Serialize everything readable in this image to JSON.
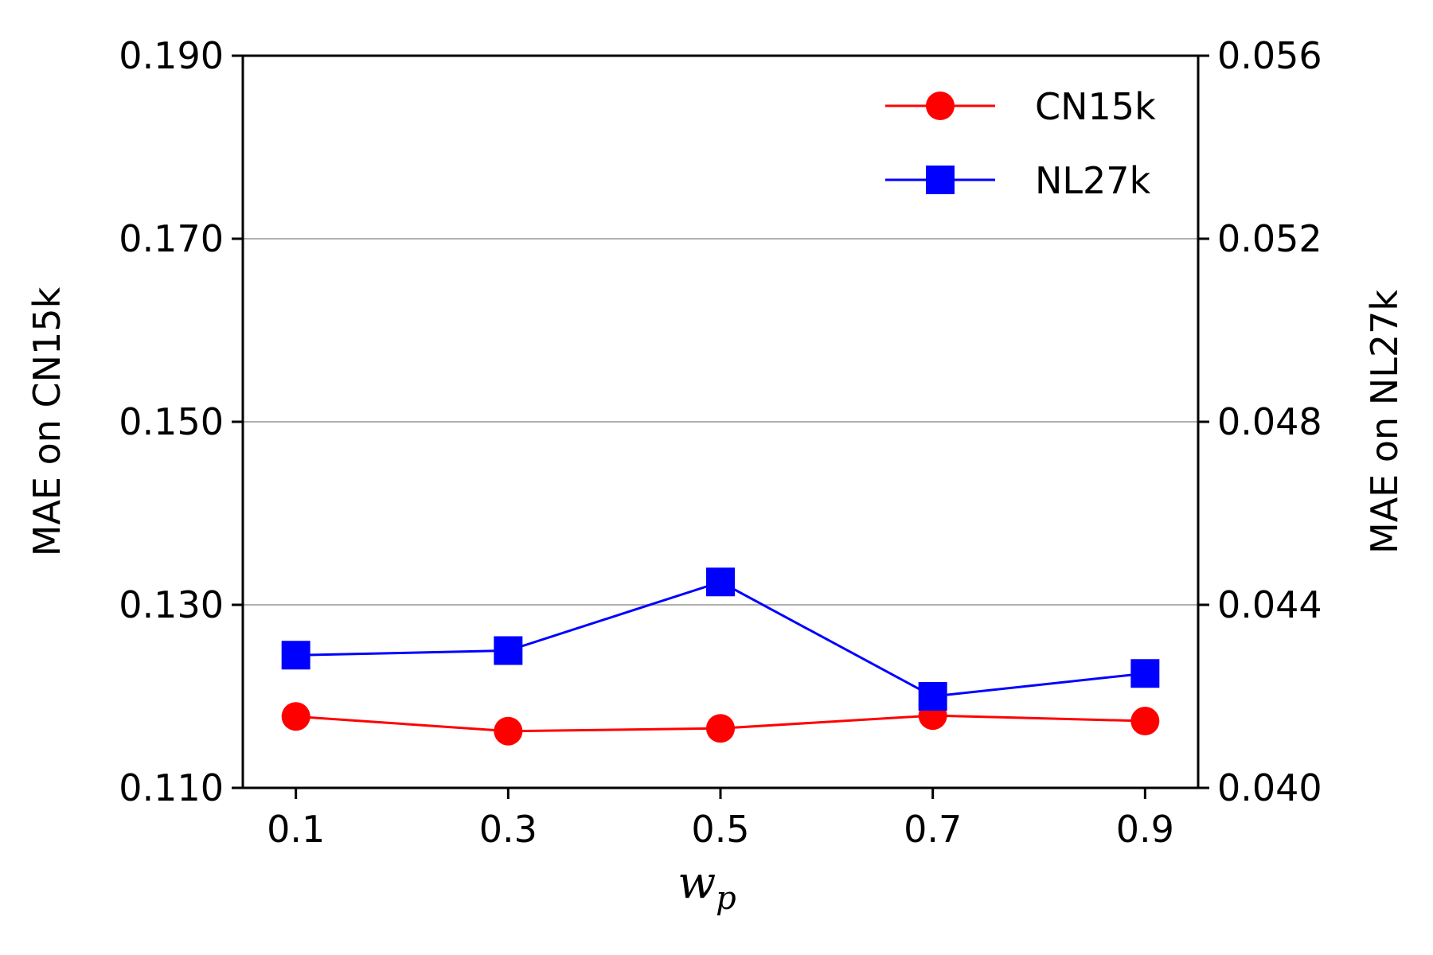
{
  "chart_data": {
    "type": "line",
    "x": [
      0.1,
      0.3,
      0.5,
      0.7,
      0.9
    ],
    "x_tick_labels": [
      "0.1",
      "0.3",
      "0.5",
      "0.7",
      "0.9"
    ],
    "xlabel": "w",
    "xlabel_subscript": "p",
    "ylabel_left": "MAE on CN15k",
    "ylabel_right": "MAE on NL27k",
    "ylim_left": [
      0.11,
      0.19
    ],
    "ylim_right": [
      0.04,
      0.056
    ],
    "y_ticks_left": [
      "0.110",
      "0.130",
      "0.150",
      "0.170",
      "0.190"
    ],
    "y_ticks_right": [
      "0.040",
      "0.044",
      "0.048",
      "0.052",
      "0.056"
    ],
    "grid": "horizontal",
    "legend_position": "top-right",
    "series": [
      {
        "name": "CN15k",
        "axis": "left",
        "color": "#ff0000",
        "marker": "circle",
        "values": [
          0.1178,
          0.1162,
          0.1165,
          0.1179,
          0.1173
        ]
      },
      {
        "name": "NL27k",
        "axis": "right",
        "color": "#0000ff",
        "marker": "square",
        "values": [
          0.0429,
          0.043,
          0.0445,
          0.042,
          0.0425
        ]
      }
    ]
  }
}
